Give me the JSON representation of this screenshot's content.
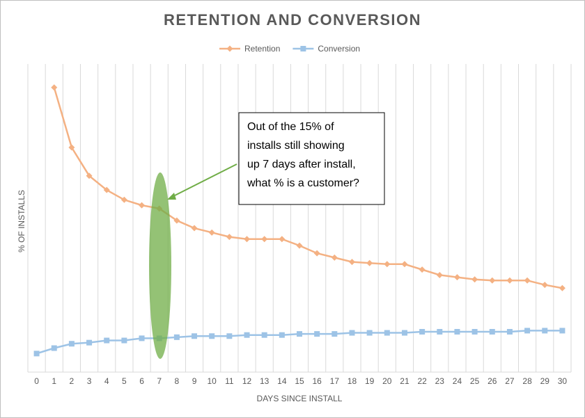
{
  "chart_data": {
    "type": "line",
    "title": "RETENTION AND CONVERSION",
    "x_label": "DAYS SINCE INSTALL",
    "y_label": "% OF INSTALLS",
    "categories": [
      "0",
      "1",
      "2",
      "3",
      "4",
      "5",
      "6",
      "7",
      "8",
      "9",
      "10",
      "11",
      "12",
      "13",
      "14",
      "15",
      "16",
      "17",
      "18",
      "19",
      "20",
      "21",
      "22",
      "23",
      "24",
      "25",
      "26",
      "27",
      "28",
      "29",
      "30"
    ],
    "series": [
      {
        "name": "Retention",
        "color": "#f4b183",
        "marker": "diamond",
        "values": [
          null,
          26.1,
          20.6,
          18.0,
          16.7,
          15.8,
          15.3,
          15.0,
          13.9,
          13.2,
          12.8,
          12.4,
          12.2,
          12.2,
          12.2,
          11.6,
          10.9,
          10.5,
          10.1,
          10.0,
          9.9,
          9.9,
          9.4,
          8.9,
          8.7,
          8.5,
          8.4,
          8.4,
          8.4,
          8.0,
          7.7
        ]
      },
      {
        "name": "Conversion",
        "color": "#9dc3e6",
        "marker": "square",
        "values": [
          1.7,
          2.2,
          2.6,
          2.7,
          2.9,
          2.9,
          3.1,
          3.1,
          3.2,
          3.3,
          3.3,
          3.3,
          3.4,
          3.4,
          3.4,
          3.5,
          3.5,
          3.5,
          3.6,
          3.6,
          3.6,
          3.6,
          3.7,
          3.7,
          3.7,
          3.7,
          3.7,
          3.7,
          3.8,
          3.8,
          3.8
        ]
      }
    ],
    "ylim": [
      0,
      28
    ],
    "grid": true,
    "legend": "top",
    "annotation": {
      "lines": [
        "Out of the 15% of",
        "installs still showing",
        "up 7 days after install,",
        "what % is a customer?"
      ]
    }
  }
}
